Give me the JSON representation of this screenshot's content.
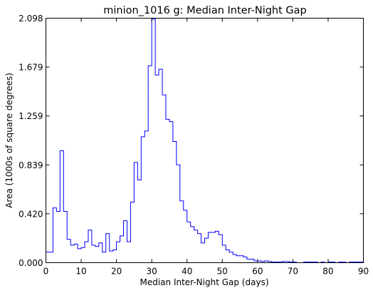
{
  "chart_data": {
    "type": "line",
    "title": "minion_1016  g: Median Inter-Night Gap",
    "xlabel": "Median Inter-Night Gap (days)",
    "ylabel": "Area (1000s of square degrees)",
    "xlim": [
      0,
      90
    ],
    "ylim": [
      0,
      2.098
    ],
    "x_ticks": [
      "0",
      "10",
      "20",
      "30",
      "40",
      "50",
      "60",
      "70",
      "80",
      "90"
    ],
    "y_ticks": [
      "0.000",
      "0.420",
      "0.839",
      "1.259",
      "1.679",
      "2.098"
    ],
    "grid": false,
    "legend": "none",
    "colors": {
      "line": "#0000ff",
      "axes": "#000000",
      "background": "#ffffff"
    },
    "series": [
      {
        "drawstyle": "steps-post",
        "bin_edges": [
          0,
          1,
          2,
          3,
          4,
          5,
          6,
          7,
          8,
          9,
          10,
          11,
          12,
          13,
          14,
          15,
          16,
          17,
          18,
          19,
          20,
          21,
          22,
          23,
          24,
          25,
          26,
          27,
          28,
          29,
          30,
          31,
          32,
          33,
          34,
          35,
          36,
          37,
          38,
          39,
          40,
          41,
          42,
          43,
          44,
          45,
          46,
          47,
          48,
          49,
          50,
          51,
          52,
          53,
          54,
          55,
          56,
          57,
          58,
          59,
          60,
          61,
          62,
          63,
          64,
          65,
          66,
          67,
          68,
          69,
          70,
          71,
          72,
          73,
          74,
          75,
          76,
          77,
          78,
          79,
          80,
          81,
          82,
          83,
          84,
          85,
          86,
          87,
          88,
          89,
          90
        ],
        "values": [
          0.09,
          0.09,
          0.47,
          0.44,
          0.96,
          0.44,
          0.2,
          0.15,
          0.16,
          0.12,
          0.13,
          0.18,
          0.28,
          0.15,
          0.14,
          0.17,
          0.09,
          0.25,
          0.1,
          0.11,
          0.18,
          0.23,
          0.36,
          0.18,
          0.52,
          0.86,
          0.71,
          1.08,
          1.13,
          1.69,
          2.09,
          1.61,
          1.66,
          1.44,
          1.23,
          1.21,
          1.04,
          0.84,
          0.53,
          0.45,
          0.35,
          0.31,
          0.28,
          0.25,
          0.17,
          0.21,
          0.26,
          0.26,
          0.27,
          0.24,
          0.15,
          0.11,
          0.09,
          0.07,
          0.06,
          0.06,
          0.05,
          0.03,
          0.03,
          0.015,
          0.015,
          0.01,
          0.015,
          0.01,
          0.005,
          0.005,
          0.005,
          0.01,
          0.01,
          0.005,
          0.005,
          0.0,
          0.0,
          0.005,
          0.005,
          0.005,
          0.005,
          0.0,
          0.005,
          0.0,
          0.005,
          0.005,
          0.0,
          0.005,
          0.005,
          0.0,
          0.005,
          0.005,
          0.005,
          0.005
        ]
      }
    ]
  }
}
